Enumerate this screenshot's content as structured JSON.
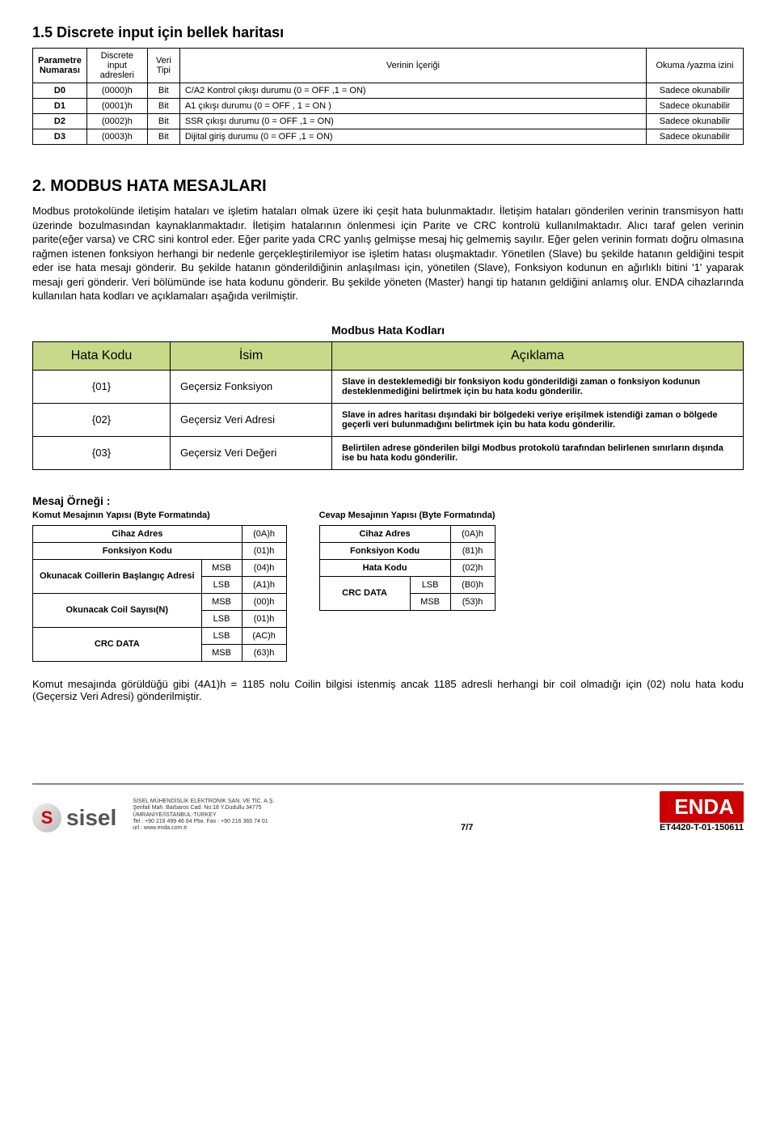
{
  "section1": {
    "title": "1.5  Discrete input için bellek haritası",
    "headers": [
      "Parametre Numarası",
      "Discrete input adresleri",
      "Veri Tipi",
      "Verinin İçeriği",
      "Okuma /yazma izini"
    ],
    "rows": [
      {
        "p": "D0",
        "a": "(0000)h",
        "t": "Bit",
        "c": "C/A2 Kontrol çıkışı durumu (0 = OFF ,1 = ON)",
        "r": "Sadece okunabilir"
      },
      {
        "p": "D1",
        "a": "(0001)h",
        "t": "Bit",
        "c": "A1 çıkışı durumu  (0 = OFF , 1 = ON )",
        "r": "Sadece okunabilir"
      },
      {
        "p": "D2",
        "a": "(0002)h",
        "t": "Bit",
        "c": "SSR çıkışı durumu  (0 = OFF ,1 = ON)",
        "r": "Sadece okunabilir"
      },
      {
        "p": "D3",
        "a": "(0003)h",
        "t": "Bit",
        "c": "Dijital giriş durumu (0 = OFF ,1 = ON)",
        "r": "Sadece okunabilir"
      }
    ]
  },
  "section2": {
    "title": "2. MODBUS HATA MESAJLARI",
    "body": "Modbus protokolünde iletişim hataları ve işletim hataları olmak üzere iki çeşit hata bulunmaktadır. İletişim hataları gönderilen verinin transmisyon hattı üzerinde bozulmasından kaynaklanmaktadır. İletişim hatalarının önlenmesi için Parite ve CRC kontrolü kullanılmaktadır. Alıcı taraf gelen verinin parite(eğer varsa) ve CRC sini kontrol eder. Eğer parite yada CRC yanlış gelmişse mesaj hiç gelmemiş sayılır. Eğer gelen verinin formatı doğru olmasına rağmen istenen fonksiyon herhangi bir nedenle gerçekleştirilemiyor ise işletim hatası oluşmaktadır. Yönetilen (Slave) bu şekilde hatanın geldiğini tespit eder ise hata mesajı gönderir. Bu şekilde hatanın gönderildiğinin anlaşılması için, yönetilen (Slave), Fonksiyon kodunun en ağırlıklı bitini '1' yaparak mesajı geri gönderir. Veri bölümünde ise hata kodunu gönderir. Bu şekilde yöneten (Master) hangi tip hatanın geldiğini anlamış olur. ENDA cihazlarında kullanılan hata kodları ve açıklamaları aşağıda verilmiştir."
  },
  "errTable": {
    "caption": "Modbus Hata Kodları",
    "headers": [
      "Hata Kodu",
      "İsim",
      "Açıklama"
    ],
    "rows": [
      {
        "code": "{01}",
        "name": "Geçersiz Fonksiyon",
        "desc": "Slave in desteklemediği bir fonksiyon kodu gönderildiği zaman o fonksiyon kodunun desteklenmediğini belirtmek için bu hata kodu gönderilir."
      },
      {
        "code": "{02}",
        "name": "Geçersiz Veri Adresi",
        "desc": "Slave in adres haritası dışındaki bir bölgedeki veriye erişilmek istendiği zaman o bölgede geçerli veri bulunmadığını belirtmek için bu hata  kodu gönderilir."
      },
      {
        "code": "{03}",
        "name": "Geçersiz Veri Değeri",
        "desc": "Belirtilen adrese gönderilen bilgi Modbus protokolü tarafından belirlenen sınırların dışında ise bu hata kodu gönderilir."
      }
    ]
  },
  "msg": {
    "title": "Mesaj Örneği :",
    "leftTitle": "Komut Mesajının Yapısı (Byte Formatında)",
    "rightTitle": "Cevap Mesajının Yapısı (Byte Formatında)",
    "left": [
      {
        "label": "Cihaz Adres",
        "sub": "",
        "val": "(0A)h"
      },
      {
        "label": "Fonksiyon Kodu",
        "sub": "",
        "val": "(01)h"
      },
      {
        "label": "Okunacak  Coillerin Başlangıç Adresi",
        "sub": "MSB",
        "val": "(04)h"
      },
      {
        "label": "",
        "sub": "LSB",
        "val": "(A1)h"
      },
      {
        "label": "Okunacak Coil Sayısı(N)",
        "sub": "MSB",
        "val": "(00)h"
      },
      {
        "label": "",
        "sub": "LSB",
        "val": "(01)h"
      },
      {
        "label": "CRC DATA",
        "sub": "LSB",
        "val": "(AC)h"
      },
      {
        "label": "",
        "sub": "MSB",
        "val": "(63)h"
      }
    ],
    "right": [
      {
        "label": "Cihaz Adres",
        "sub": "",
        "val": "(0A)h"
      },
      {
        "label": "Fonksiyon Kodu",
        "sub": "",
        "val": "(81)h"
      },
      {
        "label": "Hata  Kodu",
        "sub": "",
        "val": "(02)h"
      },
      {
        "label": "CRC DATA",
        "sub": "LSB",
        "val": "(B0)h"
      },
      {
        "label": "",
        "sub": "MSB",
        "val": "(53)h"
      }
    ]
  },
  "final": "Komut mesajında görüldüğü gibi (4A1)h = 1185  nolu Coilin bilgisi istenmiş ancak 1185 adresli herhangi bir coil olmadığı için (02) nolu hata kodu (Geçersiz  Veri  Adresi) gönderilmiştir.",
  "footer": {
    "company": "SİSEL MÜHENDİSLİK ELEKTRONİK SAN. VE TİC. A.Ş.",
    "addr1": "Şerifali Mah. Barbaros Cad. No:18 Y.Dudullu 34775",
    "addr2": "ÜMRANİYE/İSTANBUL-TURKEY",
    "tel": "Tel : +90 216 499 46 64 Pbx.    Fax : +90 216 365 74 01",
    "url": "url : www.enda.com.tr",
    "page": "7/7",
    "code": "ET4420-T-01-150611",
    "sisel": "sisel",
    "enda": "ENDA"
  }
}
